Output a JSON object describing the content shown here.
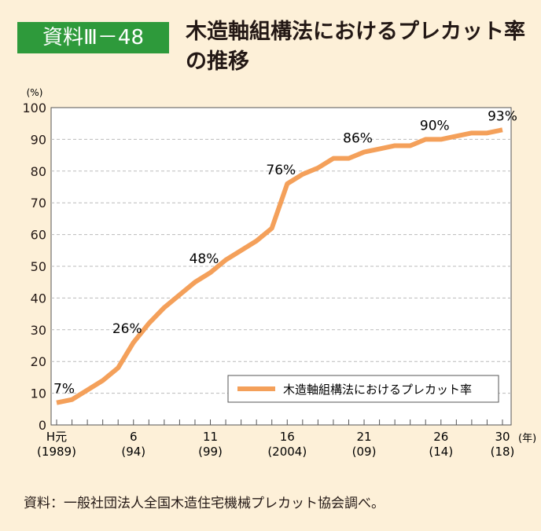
{
  "header": {
    "badge": "資料Ⅲ－48",
    "title": "木造軸組構法におけるプレカット率の推移"
  },
  "source": "資料：一般社団法人全国木造住宅機械プレカット協会調べ。",
  "colors": {
    "line": "#f4a05a",
    "badge": "#2e9a3b",
    "background": "#fdf0d8"
  },
  "chart_data": {
    "type": "line",
    "title": "木造軸組構法におけるプレカット率の推移",
    "ylabel": "(%)",
    "xlabel": "(年)",
    "ylim": [
      0,
      100
    ],
    "yticks": [
      0,
      10,
      20,
      30,
      40,
      50,
      60,
      70,
      80,
      90,
      100
    ],
    "x": [
      1,
      2,
      3,
      4,
      5,
      6,
      7,
      8,
      9,
      10,
      11,
      12,
      13,
      14,
      15,
      16,
      17,
      18,
      19,
      20,
      21,
      22,
      23,
      24,
      25,
      26,
      27,
      28,
      29,
      30
    ],
    "xticklabels": [
      {
        "x": 1,
        "top": "H元",
        "bottom": "(1989)"
      },
      {
        "x": 6,
        "top": "6",
        "bottom": "(94)"
      },
      {
        "x": 11,
        "top": "11",
        "bottom": "(99)"
      },
      {
        "x": 16,
        "top": "16",
        "bottom": "(2004)"
      },
      {
        "x": 21,
        "top": "21",
        "bottom": "(09)"
      },
      {
        "x": 26,
        "top": "26",
        "bottom": "(14)"
      },
      {
        "x": 30,
        "top": "30",
        "bottom": "(18)"
      }
    ],
    "series": [
      {
        "name": "木造軸組構法におけるプレカット率",
        "values": [
          7,
          8,
          11,
          14,
          18,
          26,
          32,
          37,
          41,
          45,
          48,
          52,
          55,
          58,
          62,
          76,
          79,
          81,
          84,
          84,
          86,
          87,
          88,
          88,
          90,
          90,
          91,
          92,
          92,
          93
        ]
      }
    ],
    "annotations": [
      {
        "x": 1,
        "label": "7%"
      },
      {
        "x": 6,
        "label": "26%"
      },
      {
        "x": 11,
        "label": "48%"
      },
      {
        "x": 16,
        "label": "76%"
      },
      {
        "x": 21,
        "label": "86%"
      },
      {
        "x": 26,
        "label": "90%"
      },
      {
        "x": 30,
        "label": "93%"
      }
    ],
    "grid": true,
    "legend": "bottom-right"
  }
}
